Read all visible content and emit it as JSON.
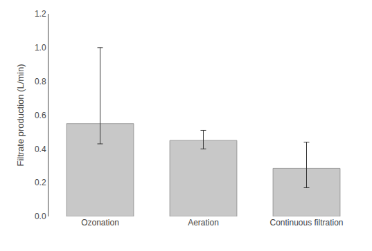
{
  "chart_data": {
    "type": "bar",
    "categories": [
      "Ozonation",
      "Aeration",
      "Continuous filtration"
    ],
    "values": [
      0.55,
      0.45,
      0.285
    ],
    "error_lower": [
      0.12,
      0.05,
      0.115
    ],
    "error_upper": [
      0.45,
      0.06,
      0.155
    ],
    "color": "#c8c8c8",
    "ylabel": "Filtrate production (L/min)",
    "ylim": [
      0.0,
      1.2
    ],
    "yticks": [
      {
        "value": 0,
        "label": "0.0"
      },
      0.2,
      0.4,
      0.6,
      0.8,
      {
        "value": 1,
        "label": "1.0"
      },
      1.2
    ],
    "grid": false
  }
}
